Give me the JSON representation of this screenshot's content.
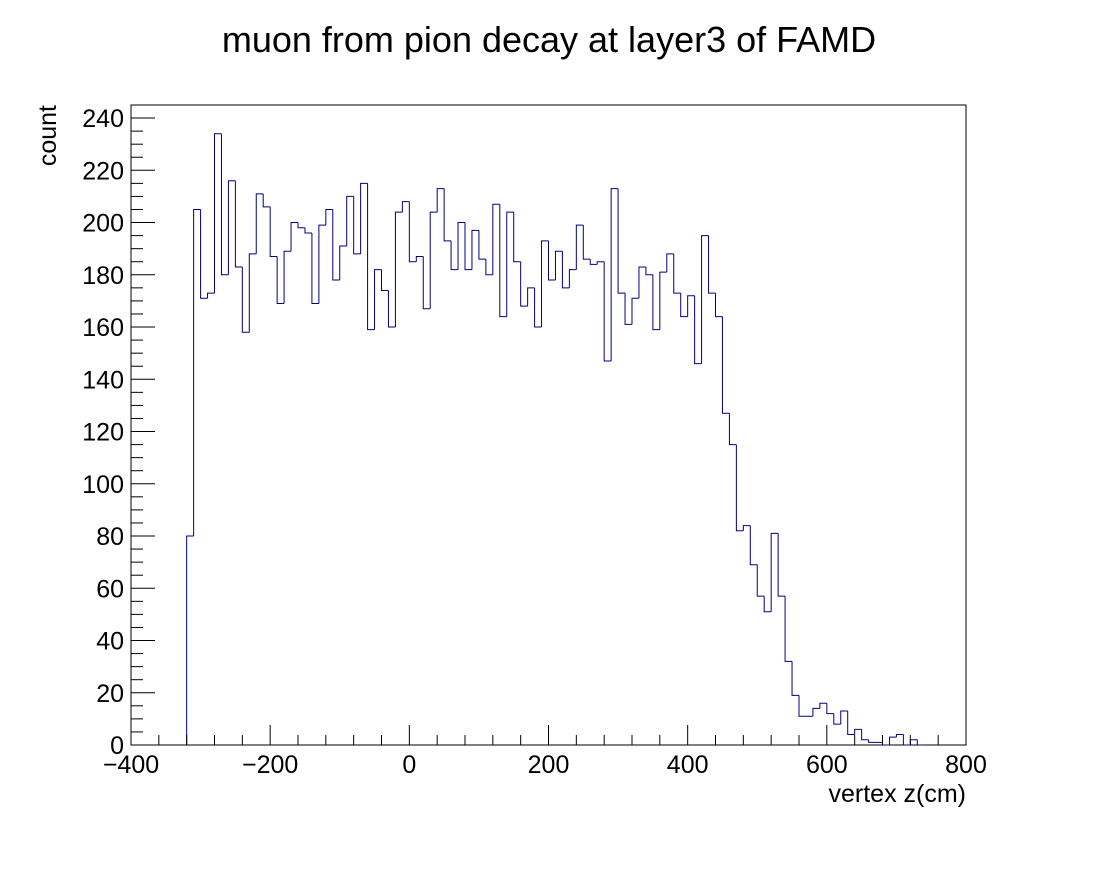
{
  "chart_data": {
    "type": "histogram",
    "title": "muon from pion decay at layer3 of FAMD",
    "xlabel": "vertex z(cm)",
    "ylabel": "count",
    "xlim": [
      -400,
      800
    ],
    "ylim": [
      0,
      245
    ],
    "x_ticks": [
      -400,
      -200,
      0,
      200,
      400,
      600,
      800
    ],
    "x_tick_labels": [
      "−400",
      "−200",
      "0",
      "200",
      "400",
      "600",
      "800"
    ],
    "y_ticks": [
      0,
      20,
      40,
      60,
      80,
      100,
      120,
      140,
      160,
      180,
      200,
      220,
      240
    ],
    "y_tick_labels": [
      "0",
      "20",
      "40",
      "60",
      "80",
      "100",
      "120",
      "140",
      "160",
      "180",
      "200",
      "220",
      "240"
    ],
    "bin_start": -320,
    "bin_width": 10,
    "values": [
      80,
      205,
      171,
      173,
      234,
      180,
      216,
      183,
      158,
      188,
      211,
      206,
      187,
      169,
      189,
      200,
      198,
      196,
      169,
      199,
      205,
      178,
      191,
      210,
      188,
      215,
      159,
      182,
      174,
      160,
      204,
      208,
      185,
      187,
      167,
      204,
      213,
      193,
      182,
      200,
      182,
      197,
      186,
      180,
      207,
      164,
      204,
      185,
      168,
      175,
      160,
      193,
      178,
      189,
      175,
      182,
      199,
      186,
      184,
      185,
      147,
      213,
      173,
      161,
      171,
      183,
      180,
      159,
      181,
      188,
      173,
      164,
      172,
      146,
      195,
      173,
      164,
      127,
      115,
      82,
      84,
      69,
      57,
      51,
      81,
      57,
      32,
      19,
      11,
      11,
      14,
      16,
      12,
      8,
      13,
      4,
      6,
      2,
      1,
      1,
      0,
      3,
      4,
      0,
      2,
      0
    ],
    "line_color": "#000080",
    "grid": false,
    "legend": "none"
  }
}
